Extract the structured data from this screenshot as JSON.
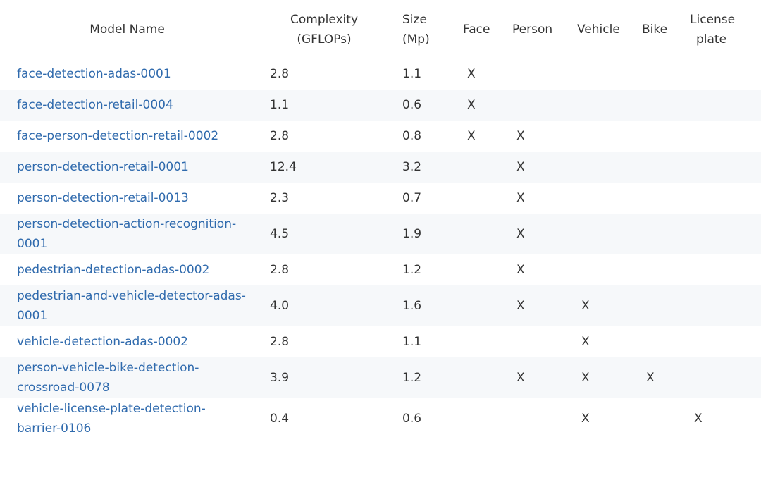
{
  "columns": {
    "model_name": "Model Name",
    "complexity": "Complexity\n(GFLOPs)",
    "size": "Size\n(Mp)",
    "face": "Face",
    "person": "Person",
    "vehicle": "Vehicle",
    "bike": "Bike",
    "license_plate": "License\nplate"
  },
  "rows": [
    {
      "name": "face-detection-adas-0001",
      "complexity": "2.8",
      "size": "1.1",
      "face": "X",
      "person": "",
      "vehicle": "",
      "bike": "",
      "license_plate": ""
    },
    {
      "name": "face-detection-retail-0004",
      "complexity": "1.1",
      "size": "0.6",
      "face": "X",
      "person": "",
      "vehicle": "",
      "bike": "",
      "license_plate": ""
    },
    {
      "name": "face-person-detection-retail-0002",
      "complexity": "2.8",
      "size": "0.8",
      "face": "X",
      "person": "X",
      "vehicle": "",
      "bike": "",
      "license_plate": ""
    },
    {
      "name": "person-detection-retail-0001",
      "complexity": "12.4",
      "size": "3.2",
      "face": "",
      "person": "X",
      "vehicle": "",
      "bike": "",
      "license_plate": ""
    },
    {
      "name": "person-detection-retail-0013",
      "complexity": "2.3",
      "size": "0.7",
      "face": "",
      "person": "X",
      "vehicle": "",
      "bike": "",
      "license_plate": ""
    },
    {
      "name": "person-detection-action-recognition-\n0001",
      "complexity": "4.5",
      "size": "1.9",
      "face": "",
      "person": "X",
      "vehicle": "",
      "bike": "",
      "license_plate": ""
    },
    {
      "name": "pedestrian-detection-adas-0002",
      "complexity": "2.8",
      "size": "1.2",
      "face": "",
      "person": "X",
      "vehicle": "",
      "bike": "",
      "license_plate": ""
    },
    {
      "name": "pedestrian-and-vehicle-detector-adas-\n0001",
      "complexity": "4.0",
      "size": "1.6",
      "face": "",
      "person": "X",
      "vehicle": "X",
      "bike": "",
      "license_plate": ""
    },
    {
      "name": "vehicle-detection-adas-0002",
      "complexity": "2.8",
      "size": "1.1",
      "face": "",
      "person": "",
      "vehicle": "X",
      "bike": "",
      "license_plate": ""
    },
    {
      "name": "person-vehicle-bike-detection-\ncrossroad-0078",
      "complexity": "3.9",
      "size": "1.2",
      "face": "",
      "person": "X",
      "vehicle": "X",
      "bike": "X",
      "license_plate": ""
    },
    {
      "name": "vehicle-license-plate-detection-\nbarrier-0106",
      "complexity": "0.4",
      "size": "0.6",
      "face": "",
      "person": "",
      "vehicle": "X",
      "bike": "",
      "license_plate": "X"
    }
  ]
}
